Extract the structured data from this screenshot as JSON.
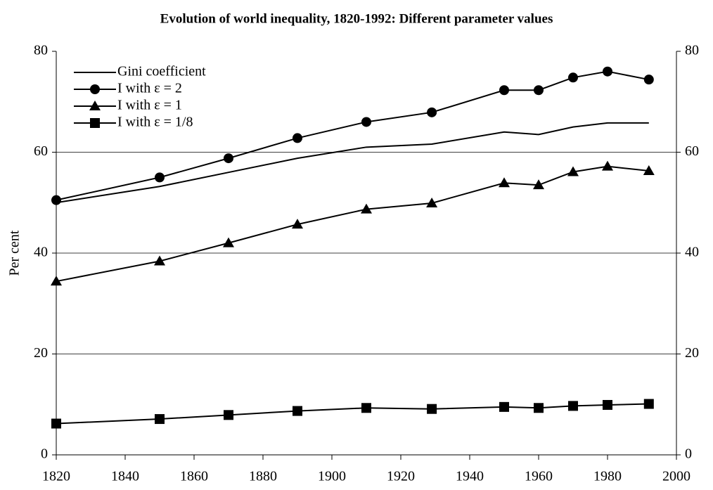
{
  "chart_data": {
    "type": "line",
    "title": "Evolution of world inequality, 1820-1992: Different parameter values",
    "y_label": "Per cent",
    "x": [
      1820,
      1850,
      1870,
      1890,
      1910,
      1929,
      1950,
      1960,
      1970,
      1980,
      1992
    ],
    "series": [
      {
        "name": "Gini coefficient",
        "color": "#000000",
        "marker": "none",
        "values": [
          50,
          53.2,
          56,
          58.8,
          61,
          61.6,
          64,
          63.5,
          65,
          65.8,
          65.8
        ]
      },
      {
        "name": "I with ε = 2",
        "color": "#000000",
        "marker": "circle",
        "values": [
          50.5,
          55,
          58.8,
          62.8,
          66,
          67.9,
          72.3,
          72.3,
          74.8,
          76,
          74.4
        ]
      },
      {
        "name": "I with ε = 1",
        "color": "#000000",
        "marker": "triangle",
        "values": [
          34.4,
          38.4,
          42,
          45.7,
          48.7,
          49.9,
          53.9,
          53.5,
          56.1,
          57.2,
          56.3
        ]
      },
      {
        "name": "I with ε = 1/8",
        "color": "#000000",
        "marker": "square",
        "values": [
          6.2,
          7.1,
          7.9,
          8.7,
          9.3,
          9.1,
          9.5,
          9.3,
          9.7,
          9.9,
          10.1
        ]
      }
    ],
    "xlim": [
      1820,
      2000
    ],
    "xticks": [
      1820,
      1840,
      1860,
      1880,
      1900,
      1920,
      1940,
      1960,
      1980,
      2000
    ],
    "ylim": [
      0,
      80
    ],
    "yticks": [
      0,
      20,
      40,
      60,
      80
    ],
    "y2lim": [
      0,
      80
    ],
    "y2ticks": [
      0,
      20,
      40,
      60,
      80
    ],
    "grid": true,
    "legend": "top-left"
  }
}
